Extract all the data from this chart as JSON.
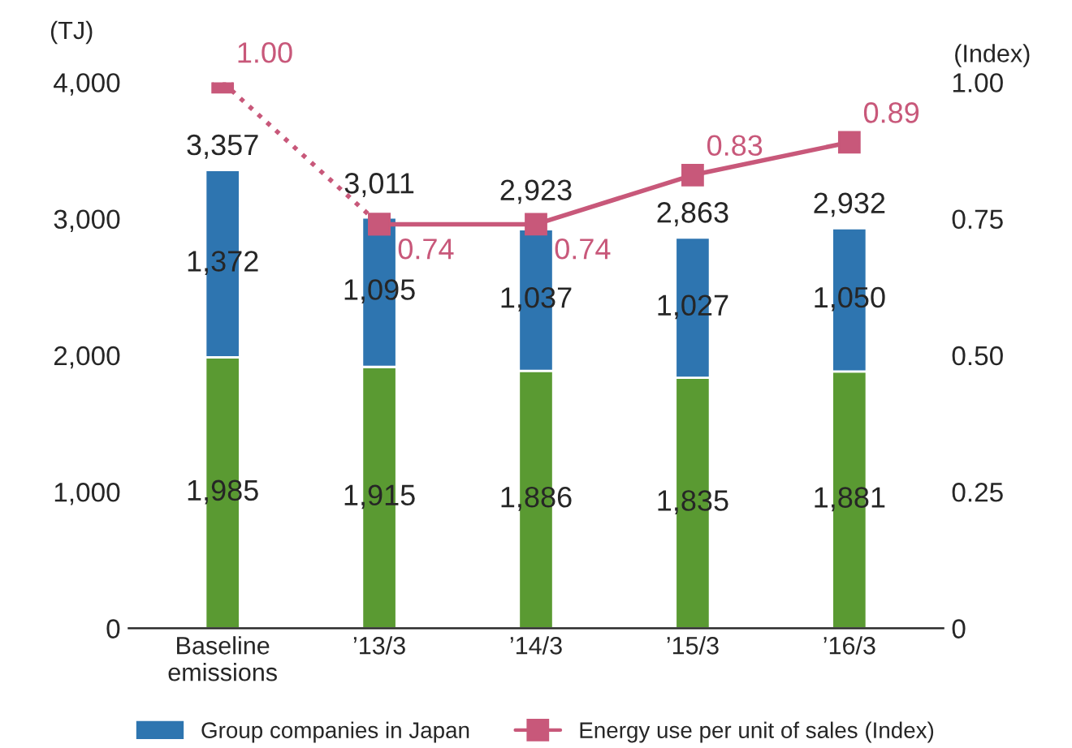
{
  "chart_data": {
    "type": "bar",
    "stacked": true,
    "ylabel": "(TJ)",
    "y2label": "(Index)",
    "categories": [
      "Baseline\nemissions",
      "’13/3",
      "’14/3",
      "’15/3",
      "’16/3"
    ],
    "series": [
      {
        "color": "#5a9a32",
        "values": [
          1985,
          1915,
          1886,
          1835,
          1881
        ],
        "value_labels": [
          "1,985",
          "1,915",
          "1,886",
          "1,835",
          "1,881"
        ]
      },
      {
        "name": "Group companies in Japan",
        "color": "#2e75b0",
        "values": [
          1372,
          1095,
          1037,
          1027,
          1050
        ],
        "value_labels": [
          "1,372",
          "1,095",
          "1,037",
          "1,027",
          "1,050"
        ]
      },
      {
        "type": "line",
        "axis": "y2",
        "color": "#c8587a",
        "marker": "square",
        "line_style": "dotted",
        "values": [
          1.0,
          0.74,
          null,
          null,
          null
        ],
        "value_labels": [
          "1.00",
          null,
          null,
          null,
          null
        ]
      },
      {
        "type": "line",
        "axis": "y2",
        "name": "Energy use per unit of sales (Index)",
        "color": "#c8587a",
        "marker": "square",
        "line_style": "solid",
        "values": [
          null,
          0.74,
          0.74,
          0.83,
          0.89
        ],
        "value_labels": [
          null,
          "0.74",
          "0.74",
          "0.83",
          "0.89"
        ]
      }
    ],
    "totals": [
      "3,357",
      "3,011",
      "2,923",
      "2,863",
      "2,932"
    ],
    "ylim": [
      0,
      4000
    ],
    "yticks": [
      {
        "value": 0,
        "label": "0"
      },
      {
        "value": 1000,
        "label": "1,000"
      },
      {
        "value": 2000,
        "label": "2,000"
      },
      {
        "value": 3000,
        "label": "3,000"
      },
      {
        "value": 4000,
        "label": "4,000"
      }
    ],
    "y2lim": [
      0,
      1
    ],
    "y2ticks": [
      {
        "value": 0,
        "label": "0"
      },
      {
        "value": 0.25,
        "label": "0.25"
      },
      {
        "value": 0.5,
        "label": "0.50"
      },
      {
        "value": 0.75,
        "label": "0.75"
      },
      {
        "value": 1.0,
        "label": "1.00"
      }
    ],
    "grid": false,
    "legend": "bottom"
  }
}
